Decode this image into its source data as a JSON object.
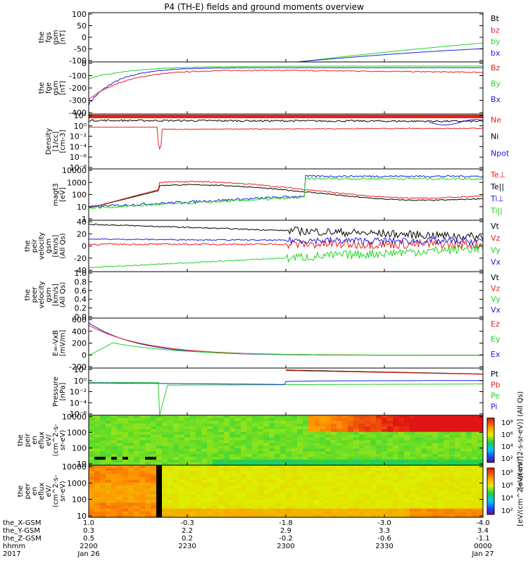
{
  "title": "P4 (TH-E) fields and ground moments overview",
  "year": "2017",
  "colors": {
    "black": "#000000",
    "red": "#e8211b",
    "green": "#22d422",
    "blue": "#1a22e0",
    "axis": "#000000"
  },
  "x_axis": {
    "rows": [
      {
        "label": "the_X-GSM",
        "values": [
          "1.0",
          "-0.3",
          "-1.8",
          "-3.0",
          "-4.0"
        ]
      },
      {
        "label": "the_Y-GSM",
        "values": [
          "0.3",
          "2.2",
          "2.9",
          "3.3",
          "3.4"
        ]
      },
      {
        "label": "the_Z-GSM",
        "values": [
          "0.5",
          "0.2",
          "-0.2",
          "-0.6",
          "-1.1"
        ]
      },
      {
        "label": "hhmm",
        "values": [
          "2200",
          "2230",
          "2300",
          "2330",
          "0000"
        ]
      }
    ],
    "dates": [
      "Jan 26",
      "",
      "",
      "",
      "Jan 27"
    ]
  },
  "chart_data": [
    {
      "type": "line",
      "panel": "fgs-gsm",
      "ylabel": [
        "the",
        "fgs",
        "gsm",
        "[nT]"
      ],
      "yticks": [
        "100",
        "50",
        "0",
        "-50",
        "-100"
      ],
      "ylim": [
        -100,
        100
      ],
      "legend": [
        {
          "name": "Bt",
          "color": "black"
        },
        {
          "name": "bz",
          "color": "red"
        },
        {
          "name": "by",
          "color": "green"
        },
        {
          "name": "bx",
          "color": "blue"
        }
      ]
    },
    {
      "type": "line",
      "panel": "fge-gsm",
      "ylabel": [
        "the",
        "fge",
        "gsm",
        "[nT]"
      ],
      "yticks": [
        "0",
        "-100",
        "-200",
        "-300",
        "-400"
      ],
      "ylim": [
        -400,
        0
      ],
      "legend": [
        {
          "name": "Bz",
          "color": "red"
        },
        {
          "name": "By",
          "color": "green"
        },
        {
          "name": "Bx",
          "color": "blue"
        }
      ]
    },
    {
      "type": "line",
      "panel": "density",
      "ylabel": [
        "Density",
        "[1/cc]",
        "[cm-3]"
      ],
      "yticks": [
        "10²",
        "10⁰",
        "10⁻²",
        "10⁻⁴",
        "10⁻⁶",
        "10⁻⁸"
      ],
      "ylim_log": [
        -9,
        3
      ],
      "legend": [
        {
          "name": "Ne",
          "color": "red"
        },
        {
          "name": "Ni",
          "color": "black"
        },
        {
          "name": "Npot",
          "color": "blue"
        }
      ]
    },
    {
      "type": "line",
      "panel": "temperature",
      "ylabel": [
        "magt3",
        "[eV]"
      ],
      "yticks": [
        "10000",
        "1000",
        "100",
        "10",
        "1"
      ],
      "ylim_log": [
        0,
        4
      ],
      "legend": [
        {
          "name": "Te⊥",
          "color": "red"
        },
        {
          "name": "Te||",
          "color": "black"
        },
        {
          "name": "Ti⊥",
          "color": "blue"
        },
        {
          "name": "Ti||",
          "color": "green"
        }
      ]
    },
    {
      "type": "line",
      "panel": "peir-velocity",
      "ylabel": [
        "the",
        "peir",
        "velocity",
        "gsm",
        "[km/s]",
        "(All Qs)"
      ],
      "yticks": [
        "40",
        "20",
        "0",
        "-20",
        "-40"
      ],
      "ylim": [
        -40,
        40
      ],
      "legend": [
        {
          "name": "Vt",
          "color": "black"
        },
        {
          "name": "Vz",
          "color": "red"
        },
        {
          "name": "Vy",
          "color": "green"
        },
        {
          "name": "Vx",
          "color": "blue"
        }
      ]
    },
    {
      "type": "line",
      "panel": "peer-velocity",
      "ylabel": [
        "the",
        "peer",
        "velocity",
        "gsm",
        "[km/s]",
        "(All Qs)"
      ],
      "yticks": [
        "1.0",
        "0.8",
        "0.6",
        "0.4",
        "0.2",
        "0.0"
      ],
      "ylim": [
        0,
        1
      ],
      "legend": [
        {
          "name": "Vt",
          "color": "black"
        },
        {
          "name": "Vz",
          "color": "red"
        },
        {
          "name": "Vy",
          "color": "green"
        },
        {
          "name": "Vx",
          "color": "blue"
        }
      ]
    },
    {
      "type": "line",
      "panel": "efield",
      "ylabel": [
        "E=-VxB",
        "[mV/m]"
      ],
      "yticks": [
        "600",
        "400",
        "200",
        "0",
        "-200"
      ],
      "ylim": [
        -200,
        600
      ],
      "legend": [
        {
          "name": "Ez",
          "color": "red"
        },
        {
          "name": "Ey",
          "color": "green"
        },
        {
          "name": "Ex",
          "color": "blue"
        }
      ]
    },
    {
      "type": "line",
      "panel": "pressure",
      "ylabel": [
        "Pressure",
        "[nPa]"
      ],
      "yticks": [
        "10²",
        "10⁰",
        "10⁻²",
        "10⁻⁴",
        "10⁻⁶"
      ],
      "ylim_log": [
        -7,
        2
      ],
      "legend": [
        {
          "name": "Pt",
          "color": "black"
        },
        {
          "name": "Pb",
          "color": "red"
        },
        {
          "name": "Pe",
          "color": "green"
        },
        {
          "name": "Pi",
          "color": "blue"
        }
      ]
    },
    {
      "type": "heatmap",
      "panel": "peir-eflux",
      "ylabel": [
        "the",
        "peir",
        "en",
        "eflux",
        "eV/",
        "(cm^2-s-",
        "sr-eV)"
      ],
      "yticks": [
        "10000",
        "1000",
        "100",
        "10"
      ],
      "ylim_log": [
        0.7,
        4.3
      ],
      "colorbar": {
        "ticks": [
          "10⁸",
          "10⁶",
          "10⁴",
          "10²"
        ],
        "label": "[eV/(cm^2-s-sr-eV)] (All Qs)"
      }
    },
    {
      "type": "heatmap",
      "panel": "peer-eflux",
      "ylabel": [
        "the",
        "peer",
        "en",
        "eflux",
        "eV/",
        "(cm^2-s-",
        "sr-eV)"
      ],
      "yticks": [
        "10000",
        "1000",
        "100",
        "10"
      ],
      "ylim_log": [
        0.7,
        4.3
      ],
      "colorbar": {
        "ticks": [
          "10⁸",
          "10⁶",
          "10⁴",
          "10²"
        ],
        "label": "[eV/(cm^2-s-sr-eV)]"
      }
    }
  ]
}
